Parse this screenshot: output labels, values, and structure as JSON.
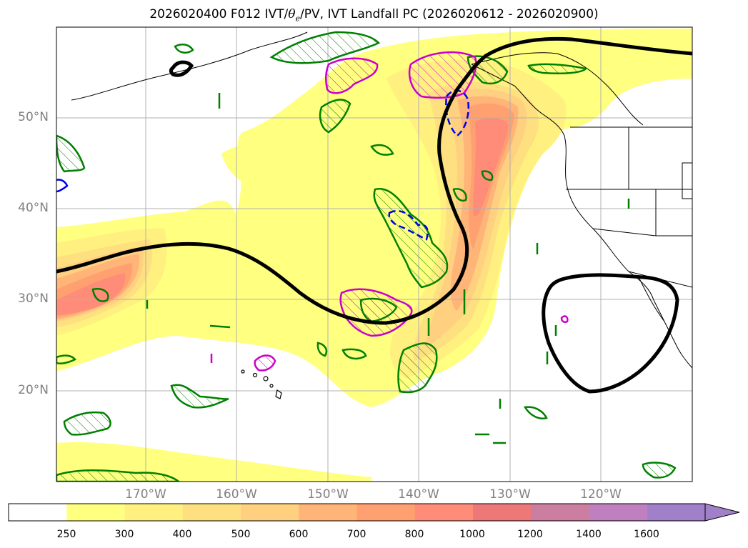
{
  "title": {
    "prefix": "2026020400 F012 IVT/",
    "theta": "θ",
    "theta_sub": "e",
    "suffix": "/PV, IVT Landfall PC (2026020612 - 2026020900)"
  },
  "axes": {
    "lat_labels": [
      "50°N",
      "40°N",
      "30°N",
      "20°N"
    ],
    "lon_labels": [
      "170°W",
      "160°W",
      "150°W",
      "140°W",
      "130°W",
      "120°W"
    ]
  },
  "colorbar": {
    "ticks": [
      "250",
      "300",
      "400",
      "500",
      "600",
      "700",
      "800",
      "1000",
      "1200",
      "1400",
      "1600"
    ],
    "colors": [
      "#ffffff",
      "#ffff80",
      "#fff080",
      "#ffe080",
      "#ffd080",
      "#ffb478",
      "#ffa070",
      "#ff8c78",
      "#ee7878",
      "#cc7ea0",
      "#c080c0",
      "#a080c8"
    ],
    "extend": "max"
  },
  "legend_colors": {
    "pv_outline": "#008000",
    "theta_e_outline": "#cc00cc",
    "negative_outline": "#0000ee",
    "landfall_contour": "#000000"
  }
}
